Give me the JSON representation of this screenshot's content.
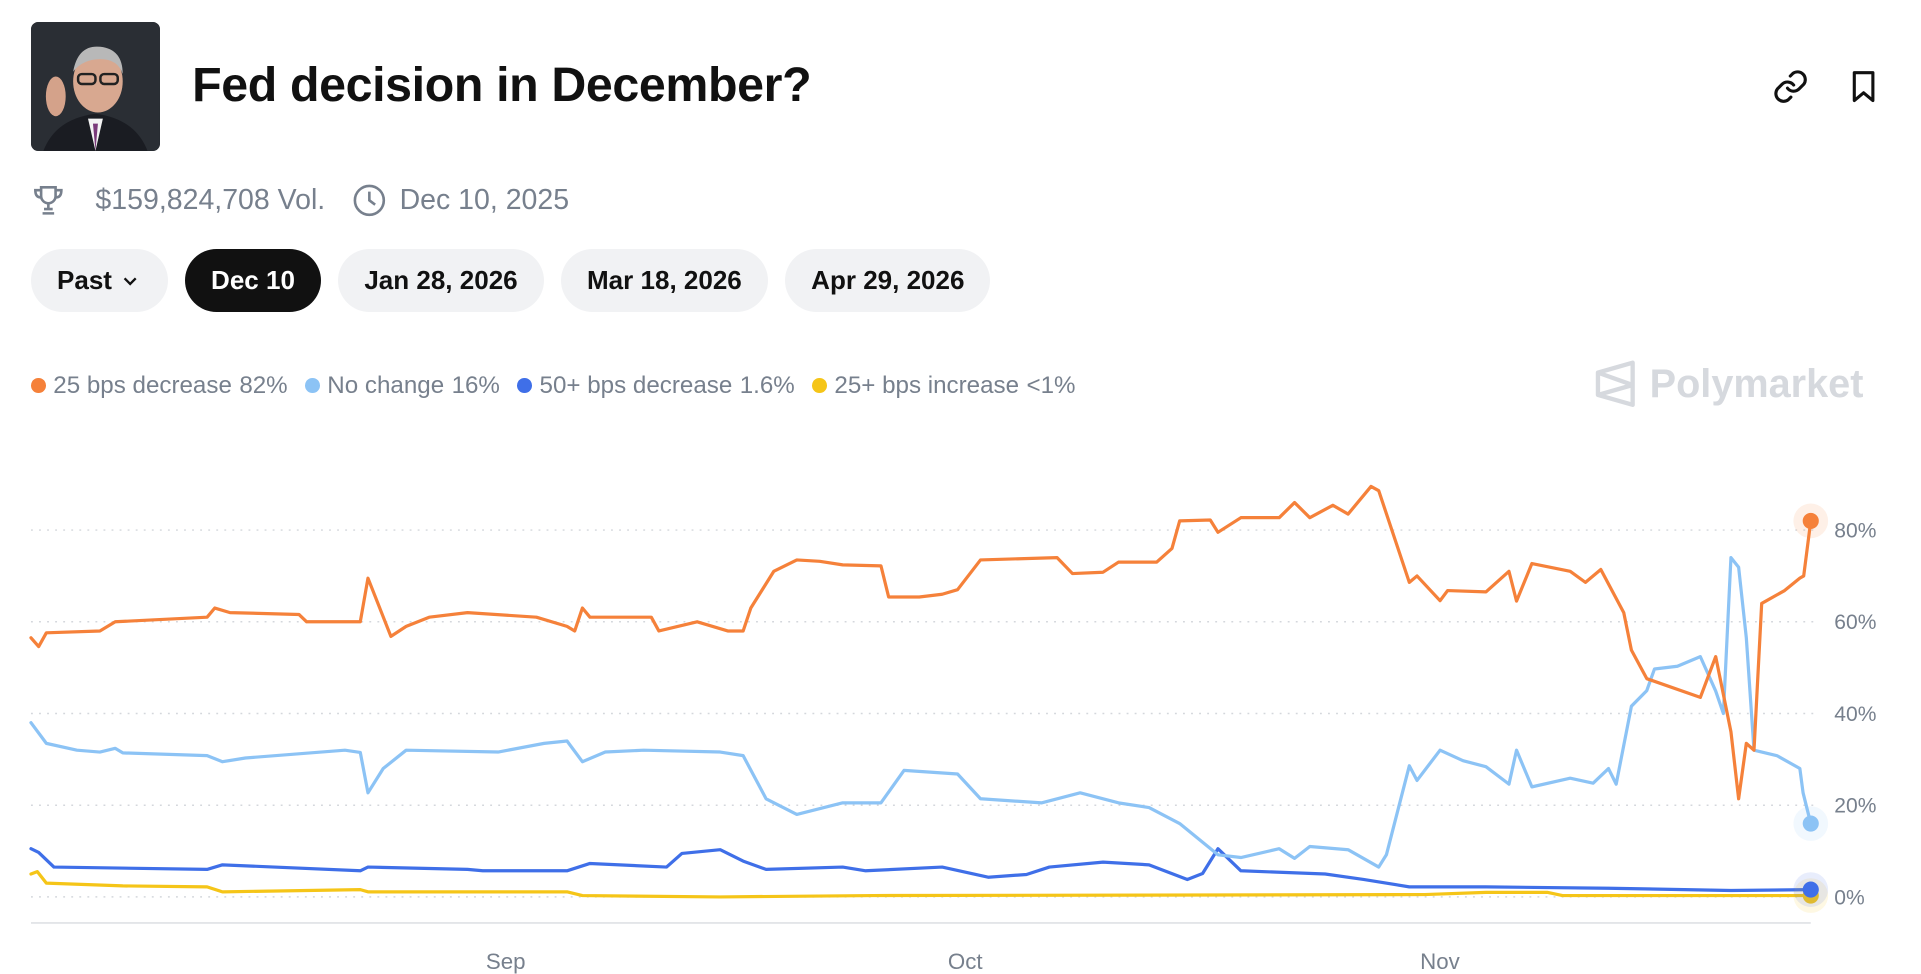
{
  "header": {
    "title": "Fed decision in December?",
    "portrait_alt": "Jerome Powell portrait",
    "link_icon": "link-icon",
    "bookmark_icon": "bookmark-icon"
  },
  "meta": {
    "volume": "$159,824,708 Vol.",
    "end_date": "Dec 10, 2025",
    "trophy_icon": "trophy-icon",
    "clock_icon": "clock-icon"
  },
  "tabs": [
    {
      "label": "Past",
      "has_dropdown": true,
      "active": false
    },
    {
      "label": "Dec 10",
      "active": true
    },
    {
      "label": "Jan 28, 2026",
      "active": false
    },
    {
      "label": "Mar 18, 2026",
      "active": false
    },
    {
      "label": "Apr 29, 2026",
      "active": false
    }
  ],
  "brand": "Polymarket",
  "chart_data": {
    "type": "line",
    "ylim": [
      0,
      100
    ],
    "y_ticks": [
      "0%",
      "20%",
      "40%",
      "60%",
      "80%"
    ],
    "y_tick_values": [
      0,
      20,
      40,
      60,
      80
    ],
    "x_ticks": [
      "Sep",
      "Oct",
      "Nov"
    ],
    "x_tick_dates": [
      "2025-09-01",
      "2025-10-01",
      "2025-11-01"
    ],
    "x_range": [
      "2025-08-01",
      "2025-11-25T05:00"
    ],
    "grid": "horizontal dotted",
    "legend_position": "top-left",
    "series": [
      {
        "name": "25 bps decrease",
        "label": "82%",
        "color": "#f5813a",
        "points": [
          [
            "2025-08-01T00:00",
            56.5
          ],
          [
            "2025-08-01T12:00",
            54.6
          ],
          [
            "2025-08-02T00:00",
            57.6
          ],
          [
            "2025-08-05T12:00",
            58
          ],
          [
            "2025-08-06T12:00",
            60
          ],
          [
            "2025-08-12T12:00",
            61
          ],
          [
            "2025-08-13T00:00",
            63
          ],
          [
            "2025-08-14T00:00",
            62
          ],
          [
            "2025-08-18T12:00",
            61.6
          ],
          [
            "2025-08-19T00:00",
            60
          ],
          [
            "2025-08-22T12:00",
            60
          ],
          [
            "2025-08-23T00:00",
            69.5
          ],
          [
            "2025-08-24T12:00",
            56.8
          ],
          [
            "2025-08-25T12:00",
            59
          ],
          [
            "2025-08-27T00:00",
            61
          ],
          [
            "2025-08-29T12:00",
            62
          ],
          [
            "2025-09-03T00:00",
            61
          ],
          [
            "2025-09-05T00:00",
            59
          ],
          [
            "2025-09-05T12:00",
            58
          ],
          [
            "2025-09-06T00:00",
            63
          ],
          [
            "2025-09-06T12:00",
            61
          ],
          [
            "2025-09-10T12:00",
            61
          ],
          [
            "2025-09-11T00:00",
            58
          ],
          [
            "2025-09-13T12:00",
            60
          ],
          [
            "2025-09-15T12:00",
            58
          ],
          [
            "2025-09-16T12:00",
            58
          ],
          [
            "2025-09-17T00:00",
            63
          ],
          [
            "2025-09-18T12:00",
            71
          ],
          [
            "2025-09-20T00:00",
            73.5
          ],
          [
            "2025-09-21T12:00",
            73.2
          ],
          [
            "2025-09-23T00:00",
            72.4
          ],
          [
            "2025-09-25T12:00",
            72.2
          ],
          [
            "2025-09-26T00:00",
            65.4
          ],
          [
            "2025-09-28T00:00",
            65.4
          ],
          [
            "2025-09-29T12:00",
            66
          ],
          [
            "2025-09-30T12:00",
            67
          ],
          [
            "2025-10-02T00:00",
            73.5
          ],
          [
            "2025-10-07T00:00",
            74
          ],
          [
            "2025-10-08T00:00",
            70.5
          ],
          [
            "2025-10-10T00:00",
            70.8
          ],
          [
            "2025-10-11T00:00",
            73
          ],
          [
            "2025-10-13T12:00",
            73
          ],
          [
            "2025-10-14T12:00",
            76
          ],
          [
            "2025-10-15T00:00",
            82
          ],
          [
            "2025-10-17T00:00",
            82.2
          ],
          [
            "2025-10-17T12:00",
            79.5
          ],
          [
            "2025-10-19T00:00",
            82.7
          ],
          [
            "2025-10-21T12:00",
            82.7
          ],
          [
            "2025-10-22T12:00",
            86
          ],
          [
            "2025-10-23T12:00",
            82.7
          ],
          [
            "2025-10-25T00:00",
            85.4
          ],
          [
            "2025-10-26T00:00",
            83.5
          ],
          [
            "2025-10-27T12:00",
            89.5
          ],
          [
            "2025-10-28T00:00",
            88.6
          ],
          [
            "2025-10-30T00:00",
            68.6
          ],
          [
            "2025-10-30T12:00",
            70
          ],
          [
            "2025-11-01T00:00",
            64.6
          ],
          [
            "2025-11-01T12:00",
            66.8
          ],
          [
            "2025-11-04T00:00",
            66.5
          ],
          [
            "2025-11-05T12:00",
            71
          ],
          [
            "2025-11-06T00:00",
            64.5
          ],
          [
            "2025-11-07T00:00",
            72.7
          ],
          [
            "2025-11-09T12:00",
            71
          ],
          [
            "2025-11-10T12:00",
            68.6
          ],
          [
            "2025-11-11T12:00",
            71.4
          ],
          [
            "2025-11-13T00:00",
            62
          ],
          [
            "2025-11-13T12:00",
            53.8
          ],
          [
            "2025-11-14T12:00",
            47.6
          ],
          [
            "2025-11-18T00:00",
            43.5
          ],
          [
            "2025-11-19T00:00",
            52.4
          ],
          [
            "2025-11-20T00:00",
            36
          ],
          [
            "2025-11-20T12:00",
            21.4
          ],
          [
            "2025-11-21T00:00",
            33.5
          ],
          [
            "2025-11-21T12:00",
            32
          ],
          [
            "2025-11-22T00:00",
            64
          ],
          [
            "2025-11-23T12:00",
            66.8
          ],
          [
            "2025-11-24T12:00",
            69.5
          ],
          [
            "2025-11-24T18:00",
            70
          ],
          [
            "2025-11-25T05:00",
            82
          ]
        ]
      },
      {
        "name": "No change",
        "label": "16%",
        "color": "#8cc3f5",
        "points": [
          [
            "2025-08-01T00:00",
            38
          ],
          [
            "2025-08-02T00:00",
            33.5
          ],
          [
            "2025-08-04T00:00",
            32
          ],
          [
            "2025-08-05T12:00",
            31.6
          ],
          [
            "2025-08-06T12:00",
            32.4
          ],
          [
            "2025-08-07T00:00",
            31.4
          ],
          [
            "2025-08-12T12:00",
            30.8
          ],
          [
            "2025-08-13T12:00",
            29.5
          ],
          [
            "2025-08-15T00:00",
            30.3
          ],
          [
            "2025-08-21T12:00",
            32
          ],
          [
            "2025-08-22T12:00",
            31.5
          ],
          [
            "2025-08-23T00:00",
            22.7
          ],
          [
            "2025-08-24T00:00",
            28
          ],
          [
            "2025-08-25T12:00",
            32
          ],
          [
            "2025-08-31T12:00",
            31.6
          ],
          [
            "2025-09-03T12:00",
            33.5
          ],
          [
            "2025-09-05T00:00",
            34
          ],
          [
            "2025-09-06T00:00",
            29.5
          ],
          [
            "2025-09-07T12:00",
            31.6
          ],
          [
            "2025-09-10T00:00",
            32
          ],
          [
            "2025-09-15T00:00",
            31.6
          ],
          [
            "2025-09-16T12:00",
            30.8
          ],
          [
            "2025-09-18T00:00",
            21.4
          ],
          [
            "2025-09-20T00:00",
            18
          ],
          [
            "2025-09-23T00:00",
            20.5
          ],
          [
            "2025-09-25T12:00",
            20.5
          ],
          [
            "2025-09-27T00:00",
            27.6
          ],
          [
            "2025-09-30T12:00",
            26.8
          ],
          [
            "2025-10-02T00:00",
            21.4
          ],
          [
            "2025-10-06T00:00",
            20.5
          ],
          [
            "2025-10-08T12:00",
            22.7
          ],
          [
            "2025-10-11T00:00",
            20.5
          ],
          [
            "2025-10-13T00:00",
            19.5
          ],
          [
            "2025-10-15T00:00",
            16
          ],
          [
            "2025-10-17T12:00",
            9.2
          ],
          [
            "2025-10-19T00:00",
            8.6
          ],
          [
            "2025-10-21T12:00",
            10.5
          ],
          [
            "2025-10-22T12:00",
            8.4
          ],
          [
            "2025-10-23T12:00",
            11
          ],
          [
            "2025-10-26T00:00",
            10.3
          ],
          [
            "2025-10-28T00:00",
            6.5
          ],
          [
            "2025-10-28T12:00",
            9.2
          ],
          [
            "2025-10-30T00:00",
            28.6
          ],
          [
            "2025-10-30T12:00",
            25.4
          ],
          [
            "2025-11-01T00:00",
            32
          ],
          [
            "2025-11-02T12:00",
            29.7
          ],
          [
            "2025-11-04T00:00",
            28.4
          ],
          [
            "2025-11-05T12:00",
            24.6
          ],
          [
            "2025-11-06T00:00",
            32
          ],
          [
            "2025-11-07T00:00",
            24
          ],
          [
            "2025-11-09T12:00",
            25.9
          ],
          [
            "2025-11-11T00:00",
            24.8
          ],
          [
            "2025-11-12T00:00",
            28
          ],
          [
            "2025-11-12T12:00",
            24.6
          ],
          [
            "2025-11-13T12:00",
            41.6
          ],
          [
            "2025-11-14T12:00",
            45
          ],
          [
            "2025-11-15T00:00",
            49.7
          ],
          [
            "2025-11-16T12:00",
            50.3
          ],
          [
            "2025-11-18T00:00",
            52.4
          ],
          [
            "2025-11-19T00:00",
            44.9
          ],
          [
            "2025-11-19T12:00",
            40
          ],
          [
            "2025-11-20T00:00",
            74
          ],
          [
            "2025-11-20T12:00",
            71.9
          ],
          [
            "2025-11-21T00:00",
            56.5
          ],
          [
            "2025-11-21T12:00",
            32
          ],
          [
            "2025-11-23T00:00",
            30.8
          ],
          [
            "2025-11-24T12:00",
            28
          ],
          [
            "2025-11-24T17:00",
            22.7
          ],
          [
            "2025-11-25T05:00",
            16
          ]
        ]
      },
      {
        "name": "50+ bps decrease",
        "label": "1.6%",
        "color": "#3f6fe8",
        "points": [
          [
            "2025-08-01T00:00",
            10.5
          ],
          [
            "2025-08-01T12:00",
            9.7
          ],
          [
            "2025-08-02T12:00",
            6.5
          ],
          [
            "2025-08-12T12:00",
            6
          ],
          [
            "2025-08-13T12:00",
            7
          ],
          [
            "2025-08-22T12:00",
            5.7
          ],
          [
            "2025-08-23T00:00",
            6.5
          ],
          [
            "2025-08-29T12:00",
            6
          ],
          [
            "2025-08-30T12:00",
            5.7
          ],
          [
            "2025-09-05T00:00",
            5.7
          ],
          [
            "2025-09-06T12:00",
            7.3
          ],
          [
            "2025-09-11T12:00",
            6.5
          ],
          [
            "2025-09-12T12:00",
            9.5
          ],
          [
            "2025-09-15T00:00",
            10.3
          ],
          [
            "2025-09-16T12:00",
            7.8
          ],
          [
            "2025-09-18T00:00",
            6
          ],
          [
            "2025-09-23T00:00",
            6.5
          ],
          [
            "2025-09-24T12:00",
            5.7
          ],
          [
            "2025-09-29T12:00",
            6.5
          ],
          [
            "2025-10-02T12:00",
            4.3
          ],
          [
            "2025-10-05T00:00",
            4.9
          ],
          [
            "2025-10-06T12:00",
            6.5
          ],
          [
            "2025-10-10T00:00",
            7.6
          ],
          [
            "2025-10-13T00:00",
            7
          ],
          [
            "2025-10-15T12:00",
            3.8
          ],
          [
            "2025-10-16T12:00",
            5.1
          ],
          [
            "2025-10-17T12:00",
            10.5
          ],
          [
            "2025-10-19T00:00",
            5.7
          ],
          [
            "2025-10-24T12:00",
            5
          ],
          [
            "2025-10-27T00:00",
            3.8
          ],
          [
            "2025-10-30T00:00",
            2.2
          ],
          [
            "2025-11-04T00:00",
            2.2
          ],
          [
            "2025-11-12T00:00",
            1.9
          ],
          [
            "2025-11-20T00:00",
            1.4
          ],
          [
            "2025-11-25T05:00",
            1.6
          ]
        ]
      },
      {
        "name": "25+ bps increase",
        "label": "<1%",
        "color": "#f5c518",
        "points": [
          [
            "2025-08-01T00:00",
            5
          ],
          [
            "2025-08-01T10:00",
            5.5
          ],
          [
            "2025-08-02T00:00",
            3
          ],
          [
            "2025-08-07T00:00",
            2.4
          ],
          [
            "2025-08-12T12:00",
            2.2
          ],
          [
            "2025-08-13T12:00",
            1.1
          ],
          [
            "2025-08-22T12:00",
            1.6
          ],
          [
            "2025-08-23T00:00",
            1.1
          ],
          [
            "2025-09-05T00:00",
            1.1
          ],
          [
            "2025-09-06T00:00",
            0.3
          ],
          [
            "2025-09-15T00:00",
            0
          ],
          [
            "2025-09-25T00:00",
            0.3
          ],
          [
            "2025-10-31T00:00",
            0.5
          ],
          [
            "2025-11-04T00:00",
            1
          ],
          [
            "2025-11-08T00:00",
            1
          ],
          [
            "2025-11-09T00:00",
            0.3
          ],
          [
            "2025-11-25T05:00",
            0.3
          ]
        ]
      }
    ]
  }
}
